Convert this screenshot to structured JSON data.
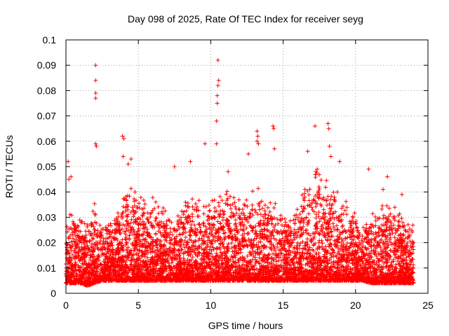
{
  "chart_data": {
    "type": "scatter",
    "title": "Day 098 of 2025, Rate Of TEC Index for receiver seyg",
    "xlabel": "GPS time / hours",
    "ylabel": "ROTI / TECUs",
    "xlim": [
      0,
      25
    ],
    "ylim": [
      0,
      0.1
    ],
    "xticks": [
      "0",
      "5",
      "10",
      "15",
      "20",
      "25"
    ],
    "yticks": [
      "0",
      "0.01",
      "0.02",
      "0.03",
      "0.04",
      "0.05",
      "0.06",
      "0.07",
      "0.08",
      "0.09",
      "0.1"
    ],
    "grid": true,
    "marker": "+",
    "color": "#ff0000",
    "envelope": {
      "x": [
        0,
        0.3,
        0.6,
        1.0,
        1.5,
        2.0,
        2.5,
        3.0,
        3.5,
        4.0,
        4.5,
        5.0,
        5.5,
        6.0,
        6.5,
        7.0,
        7.5,
        8.0,
        8.5,
        9.0,
        9.5,
        10.0,
        10.5,
        11.0,
        11.5,
        12.0,
        12.5,
        13.0,
        13.5,
        14.0,
        14.5,
        15.0,
        15.5,
        16.0,
        16.5,
        17.0,
        17.5,
        18.0,
        18.5,
        19.0,
        19.5,
        20.0,
        20.5,
        21.0,
        21.5,
        22.0,
        22.5,
        23.0,
        23.5,
        24.0
      ],
      "y_typical_max": [
        0.022,
        0.03,
        0.028,
        0.026,
        0.024,
        0.034,
        0.026,
        0.027,
        0.028,
        0.036,
        0.038,
        0.035,
        0.034,
        0.033,
        0.031,
        0.03,
        0.028,
        0.03,
        0.036,
        0.033,
        0.032,
        0.035,
        0.038,
        0.036,
        0.034,
        0.033,
        0.035,
        0.038,
        0.036,
        0.034,
        0.033,
        0.028,
        0.027,
        0.033,
        0.038,
        0.042,
        0.045,
        0.042,
        0.038,
        0.035,
        0.03,
        0.027,
        0.026,
        0.027,
        0.028,
        0.033,
        0.031,
        0.029,
        0.026,
        0.024
      ],
      "y_min": [
        0.004,
        0.004,
        0.004,
        0.004,
        0.003,
        0.004,
        0.005,
        0.005,
        0.005,
        0.005,
        0.005,
        0.005,
        0.005,
        0.005,
        0.005,
        0.005,
        0.005,
        0.005,
        0.005,
        0.005,
        0.005,
        0.005,
        0.005,
        0.005,
        0.005,
        0.005,
        0.005,
        0.005,
        0.005,
        0.005,
        0.005,
        0.005,
        0.005,
        0.005,
        0.005,
        0.005,
        0.005,
        0.005,
        0.005,
        0.005,
        0.005,
        0.005,
        0.005,
        0.004,
        0.004,
        0.004,
        0.004,
        0.004,
        0.004,
        0.004
      ]
    },
    "outliers": [
      [
        0.15,
        0.052
      ],
      [
        0.2,
        0.045
      ],
      [
        0.35,
        0.046
      ],
      [
        2.05,
        0.09
      ],
      [
        2.05,
        0.084
      ],
      [
        2.05,
        0.079
      ],
      [
        2.05,
        0.077
      ],
      [
        2.05,
        0.059
      ],
      [
        2.1,
        0.058
      ],
      [
        3.9,
        0.062
      ],
      [
        4.0,
        0.061
      ],
      [
        3.95,
        0.054
      ],
      [
        4.3,
        0.051
      ],
      [
        4.5,
        0.053
      ],
      [
        7.5,
        0.05
      ],
      [
        8.6,
        0.052
      ],
      [
        9.6,
        0.059
      ],
      [
        10.5,
        0.092
      ],
      [
        10.55,
        0.084
      ],
      [
        10.5,
        0.082
      ],
      [
        10.45,
        0.078
      ],
      [
        10.45,
        0.075
      ],
      [
        10.4,
        0.068
      ],
      [
        10.4,
        0.059
      ],
      [
        11.2,
        0.048
      ],
      [
        12.6,
        0.055
      ],
      [
        13.2,
        0.064
      ],
      [
        13.25,
        0.062
      ],
      [
        13.2,
        0.06
      ],
      [
        13.3,
        0.059
      ],
      [
        14.3,
        0.066
      ],
      [
        14.35,
        0.065
      ],
      [
        14.4,
        0.057
      ],
      [
        16.7,
        0.056
      ],
      [
        17.2,
        0.066
      ],
      [
        18.1,
        0.067
      ],
      [
        18.15,
        0.065
      ],
      [
        18.2,
        0.058
      ],
      [
        18.3,
        0.054
      ],
      [
        18.9,
        0.052
      ],
      [
        20.9,
        0.049
      ],
      [
        22.2,
        0.046
      ],
      [
        21.9,
        0.041
      ],
      [
        23.2,
        0.039
      ]
    ]
  }
}
